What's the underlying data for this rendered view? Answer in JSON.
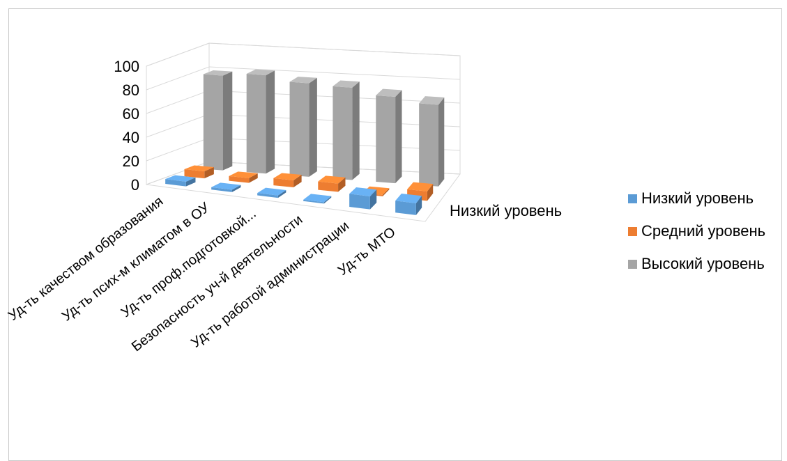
{
  "chart_data": {
    "type": "bar",
    "title": "",
    "xlabel": "",
    "ylabel": "",
    "ylim": [
      0,
      100
    ],
    "yticks": [
      0,
      20,
      40,
      60,
      80,
      100
    ],
    "grid": true,
    "legend_position": "right",
    "depth_axis_label": "Низкий уровень",
    "categories": [
      "Уд-ть качеством образования",
      "Уд-ть псих-м климатом в ОУ",
      "Уд-ть проф.подготовкой...",
      "Безопасность уч-й деятельности",
      "Уд-ть работой администрации",
      "Уд-ть МТО"
    ],
    "series": [
      {
        "name": "Низкий уровень",
        "color": "#5b9bd5",
        "values": [
          4,
          2,
          2,
          0,
          11,
          10
        ]
      },
      {
        "name": "Средний уровень",
        "color": "#ed7d31",
        "values": [
          6,
          4,
          6,
          7,
          0,
          8
        ]
      },
      {
        "name": "Высокий уровень",
        "color": "#a5a5a5",
        "values": [
          80,
          83,
          79,
          78,
          73,
          69
        ]
      }
    ]
  }
}
